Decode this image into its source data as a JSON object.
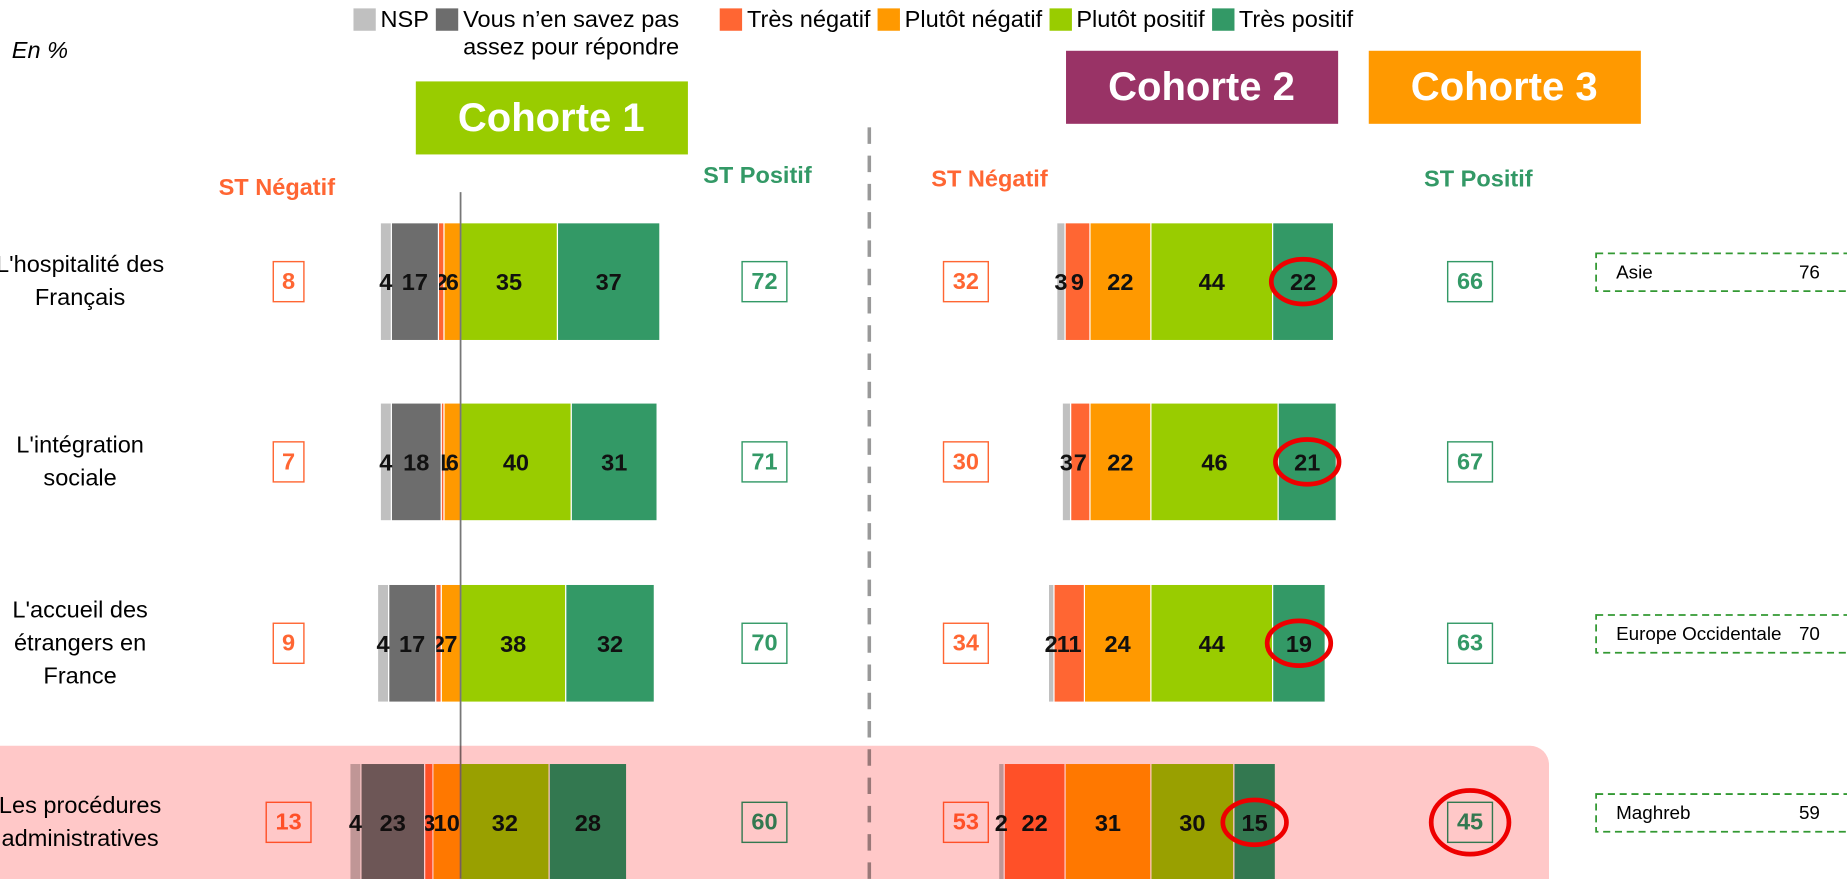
{
  "chart_data": [
    {
      "type": "diverging-stacked-bar",
      "title": "Cohorte 1",
      "note": "En %",
      "categories": [
        "L'hospitalité des\nFrançais",
        "L'intégration\nsociale",
        "L'accueil des\nétrangers en\nFrance",
        "Les procédures\nadministratives"
      ],
      "series": [
        {
          "name": "NSP",
          "color": "#c0c0c0",
          "values": [
            4,
            4,
            4,
            4
          ]
        },
        {
          "name": "Vous n’en savez pas assez pour répondre",
          "color": "#6d6d6d",
          "values": [
            17,
            18,
            17,
            23
          ]
        },
        {
          "name": "Très négatif",
          "color": "#ff6633",
          "values": [
            2,
            1,
            2,
            3
          ]
        },
        {
          "name": "Plutôt négatif",
          "color": "#ff9900",
          "values": [
            6,
            6,
            7,
            10
          ]
        },
        {
          "name": "Plutôt positif",
          "color": "#99cc00",
          "values": [
            35,
            40,
            38,
            32
          ]
        },
        {
          "name": "Très positif",
          "color": "#339966",
          "values": [
            37,
            31,
            32,
            28
          ]
        }
      ],
      "st_negatif": {
        "label": "ST Négatif",
        "color": "#ff6633",
        "values": [
          8,
          7,
          9,
          13
        ]
      },
      "st_positif": {
        "label": "ST Positif",
        "color": "#339966",
        "values": [
          72,
          71,
          70,
          60
        ]
      },
      "title_color": "#99cc00",
      "highlight_row": 3
    },
    {
      "type": "diverging-stacked-bar",
      "title": "Cohorte 2",
      "series": [
        {
          "color": "#c0c0c0",
          "values": [
            3,
            3,
            2,
            2
          ]
        },
        {
          "color": "#6d6d6d",
          "values": [
            null,
            null,
            null,
            null
          ]
        },
        {
          "color": "#ff6633",
          "values": [
            9,
            7,
            11,
            22
          ]
        },
        {
          "color": "#ff9900",
          "values": [
            22,
            22,
            24,
            31
          ]
        },
        {
          "color": "#99cc00",
          "values": [
            44,
            46,
            44,
            30
          ]
        },
        {
          "color": "#339966",
          "values": [
            22,
            21,
            19,
            15
          ]
        }
      ],
      "st_negatif": {
        "label": "ST Négatif",
        "color": "#ff6633",
        "values": [
          32,
          30,
          34,
          53
        ]
      },
      "st_positif": {
        "label": "ST Positif",
        "color": "#339966",
        "values": [
          66,
          67,
          63,
          45
        ]
      },
      "title_color": "#993366"
    },
    {
      "type": "callout-list",
      "title": "Cohorte 3",
      "title_color": "#ff9900",
      "categories": [
        "Asie",
        null,
        "Europe Occidentale",
        "Maghreb"
      ],
      "values": [
        76,
        null,
        70,
        59
      ]
    }
  ]
}
